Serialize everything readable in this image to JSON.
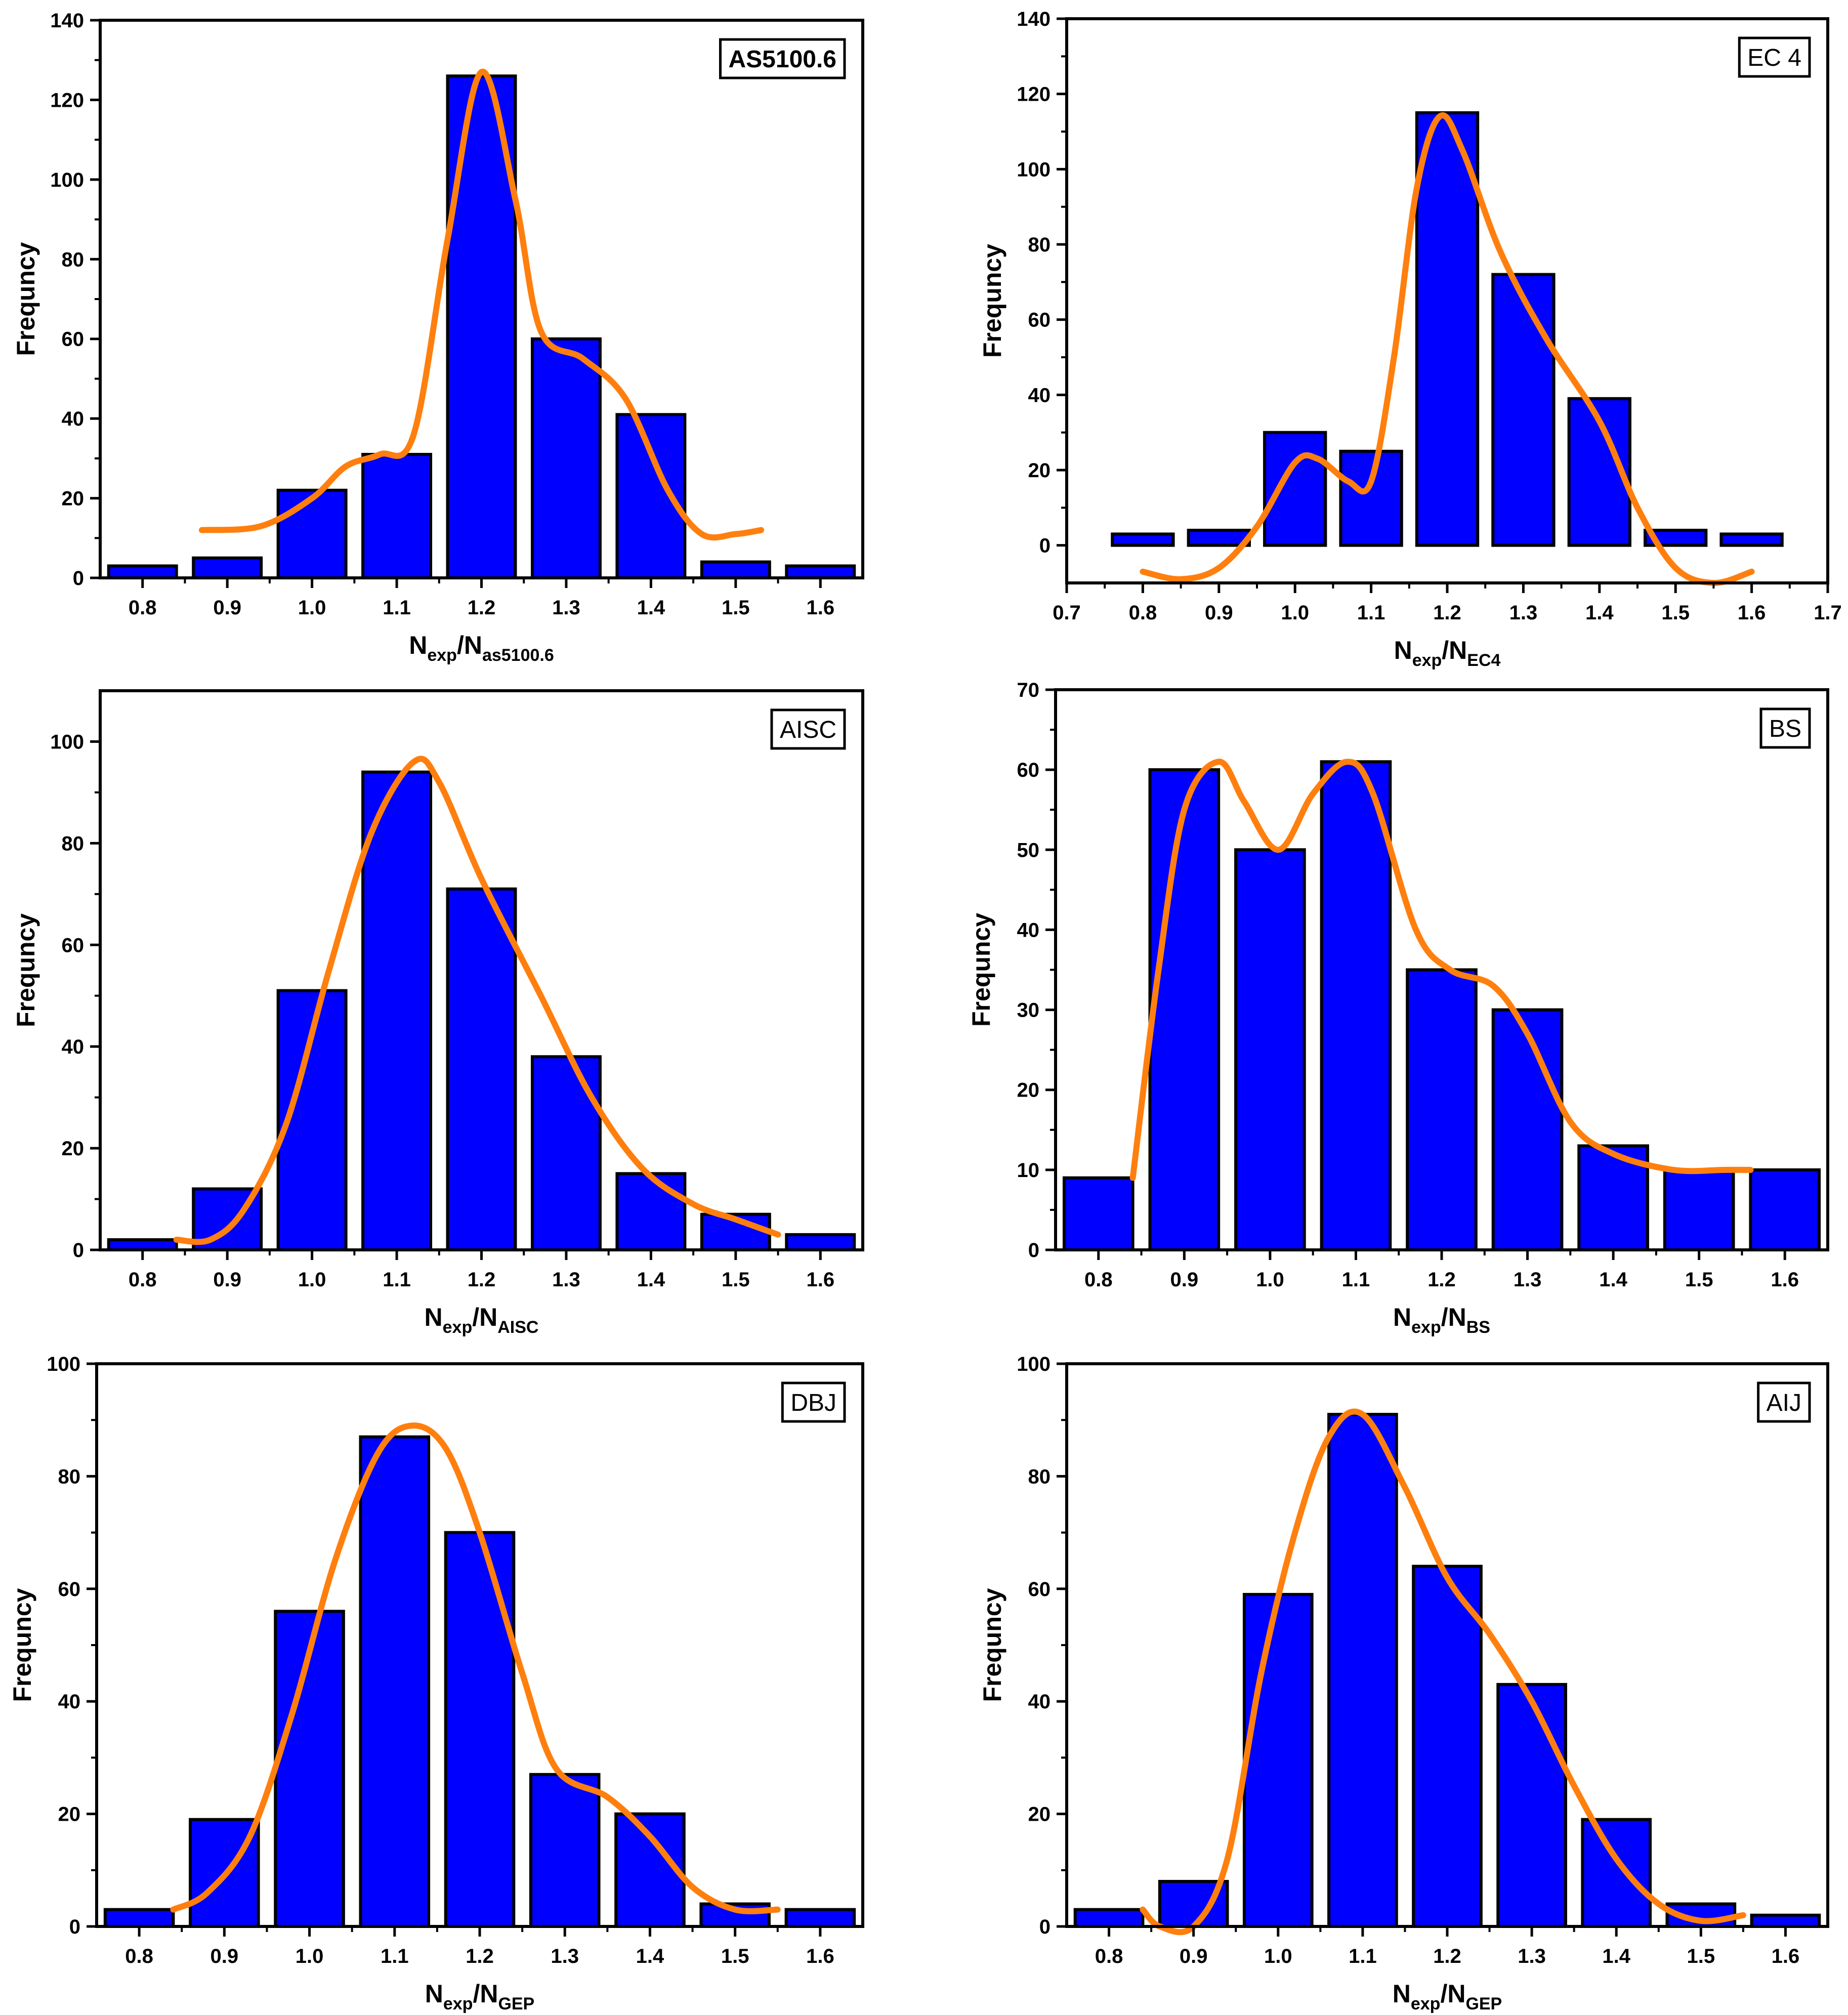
{
  "chart_data": [
    {
      "id": "as5100",
      "type": "bar",
      "label": "AS5100.6",
      "label_bold": true,
      "ylabel": "Frequncy",
      "xlabel_main": "N",
      "xlabel_sub1": "exp",
      "xlabel_mid": "/N",
      "xlabel_sub2": "as5100.6",
      "xlim": [
        0.75,
        1.65
      ],
      "ylim": [
        0,
        140
      ],
      "xticks": [
        0.8,
        0.9,
        1.0,
        1.1,
        1.2,
        1.3,
        1.4,
        1.5,
        1.6
      ],
      "yticks": [
        0,
        20,
        40,
        60,
        80,
        100,
        120,
        140
      ],
      "bar_width": 0.08,
      "x": [
        0.8,
        0.9,
        1.0,
        1.1,
        1.2,
        1.3,
        1.4,
        1.5,
        1.6
      ],
      "values": [
        3,
        5,
        22,
        31,
        126,
        60,
        41,
        4,
        3
      ],
      "curve": [
        [
          0.87,
          12
        ],
        [
          0.94,
          13
        ],
        [
          1.0,
          20
        ],
        [
          1.04,
          28
        ],
        [
          1.08,
          31
        ],
        [
          1.12,
          36
        ],
        [
          1.16,
          85
        ],
        [
          1.2,
          127
        ],
        [
          1.24,
          95
        ],
        [
          1.27,
          62
        ],
        [
          1.32,
          55
        ],
        [
          1.37,
          45
        ],
        [
          1.42,
          22
        ],
        [
          1.46,
          11
        ],
        [
          1.5,
          11
        ],
        [
          1.53,
          12
        ]
      ]
    },
    {
      "id": "ec4",
      "type": "bar",
      "label": "EC 4",
      "label_bold": false,
      "ylabel": "Frequncy",
      "xlabel_main": "N",
      "xlabel_sub1": "exp",
      "xlabel_mid": "/N",
      "xlabel_sub2": "EC4",
      "xlim": [
        0.7,
        1.7
      ],
      "ylim": [
        -10,
        140
      ],
      "xticks": [
        0.7,
        0.8,
        0.9,
        1.0,
        1.1,
        1.2,
        1.3,
        1.4,
        1.5,
        1.6,
        1.7
      ],
      "yticks": [
        0,
        20,
        40,
        60,
        80,
        100,
        120,
        140
      ],
      "bar_width": 0.08,
      "x": [
        0.8,
        0.9,
        1.0,
        1.1,
        1.2,
        1.3,
        1.4,
        1.5,
        1.6
      ],
      "values": [
        3,
        4,
        30,
        25,
        115,
        72,
        39,
        4,
        3
      ],
      "curve": [
        [
          0.8,
          -7
        ],
        [
          0.85,
          -9
        ],
        [
          0.9,
          -6
        ],
        [
          0.95,
          5
        ],
        [
          1.0,
          22
        ],
        [
          1.03,
          23
        ],
        [
          1.07,
          17
        ],
        [
          1.1,
          17
        ],
        [
          1.13,
          50
        ],
        [
          1.16,
          95
        ],
        [
          1.19,
          114
        ],
        [
          1.22,
          105
        ],
        [
          1.27,
          78
        ],
        [
          1.33,
          55
        ],
        [
          1.4,
          33
        ],
        [
          1.45,
          10
        ],
        [
          1.5,
          -6
        ],
        [
          1.55,
          -10
        ],
        [
          1.6,
          -7
        ]
      ]
    },
    {
      "id": "aisc",
      "type": "bar",
      "label": "AISC",
      "label_bold": false,
      "ylabel": "Frequncy",
      "xlabel_main": "N",
      "xlabel_sub1": "exp",
      "xlabel_mid": "/N",
      "xlabel_sub2": "AISC",
      "xlim": [
        0.75,
        1.65
      ],
      "ylim": [
        0,
        110
      ],
      "xticks": [
        0.8,
        0.9,
        1.0,
        1.1,
        1.2,
        1.3,
        1.4,
        1.5,
        1.6
      ],
      "yticks": [
        0,
        20,
        40,
        60,
        80,
        100
      ],
      "bar_width": 0.08,
      "x": [
        0.8,
        0.9,
        1.0,
        1.1,
        1.2,
        1.3,
        1.4,
        1.5,
        1.6
      ],
      "values": [
        2,
        12,
        51,
        94,
        71,
        38,
        15,
        7,
        3
      ],
      "curve": [
        [
          0.84,
          2
        ],
        [
          0.88,
          2
        ],
        [
          0.92,
          8
        ],
        [
          0.97,
          25
        ],
        [
          1.02,
          55
        ],
        [
          1.07,
          82
        ],
        [
          1.12,
          96
        ],
        [
          1.15,
          92
        ],
        [
          1.2,
          73
        ],
        [
          1.27,
          50
        ],
        [
          1.33,
          30
        ],
        [
          1.39,
          16
        ],
        [
          1.45,
          9
        ],
        [
          1.5,
          6
        ],
        [
          1.55,
          3
        ]
      ]
    },
    {
      "id": "bs",
      "type": "bar",
      "label": "BS",
      "label_bold": false,
      "ylabel": "Frequncy",
      "xlabel_main": "N",
      "xlabel_sub1": "exp",
      "xlabel_mid": "/N",
      "xlabel_sub2": "BS",
      "xlim": [
        0.75,
        1.65
      ],
      "ylim": [
        0,
        70
      ],
      "xticks": [
        0.8,
        0.9,
        1.0,
        1.1,
        1.2,
        1.3,
        1.4,
        1.5,
        1.6
      ],
      "yticks": [
        0,
        10,
        20,
        30,
        40,
        50,
        60,
        70
      ],
      "bar_width": 0.08,
      "x": [
        0.8,
        0.9,
        1.0,
        1.1,
        1.2,
        1.3,
        1.4,
        1.5,
        1.6
      ],
      "values": [
        9,
        60,
        50,
        61,
        35,
        30,
        13,
        10,
        10
      ],
      "curve": [
        [
          0.84,
          9
        ],
        [
          0.87,
          35
        ],
        [
          0.9,
          55
        ],
        [
          0.94,
          61
        ],
        [
          0.97,
          56
        ],
        [
          1.01,
          50
        ],
        [
          1.05,
          57
        ],
        [
          1.09,
          61
        ],
        [
          1.12,
          57
        ],
        [
          1.17,
          40
        ],
        [
          1.21,
          35
        ],
        [
          1.26,
          33
        ],
        [
          1.3,
          27
        ],
        [
          1.35,
          16
        ],
        [
          1.4,
          12
        ],
        [
          1.47,
          10
        ],
        [
          1.53,
          10
        ],
        [
          1.56,
          10
        ]
      ]
    },
    {
      "id": "dbj",
      "type": "bar",
      "label": "DBJ",
      "label_bold": false,
      "ylabel": "Frequncy",
      "xlabel_main": "N",
      "xlabel_sub1": "exp",
      "xlabel_mid": "/N",
      "xlabel_sub2": "GEP",
      "xlim": [
        0.75,
        1.65
      ],
      "ylim": [
        0,
        100
      ],
      "xticks": [
        0.8,
        0.9,
        1.0,
        1.1,
        1.2,
        1.3,
        1.4,
        1.5,
        1.6
      ],
      "yticks": [
        0,
        20,
        40,
        60,
        80,
        100
      ],
      "bar_width": 0.08,
      "x": [
        0.8,
        0.9,
        1.0,
        1.1,
        1.2,
        1.3,
        1.4,
        1.5,
        1.6
      ],
      "values": [
        3,
        19,
        56,
        87,
        70,
        27,
        20,
        4,
        3
      ],
      "curve": [
        [
          0.84,
          3
        ],
        [
          0.88,
          6
        ],
        [
          0.93,
          16
        ],
        [
          0.98,
          38
        ],
        [
          1.03,
          65
        ],
        [
          1.08,
          84
        ],
        [
          1.12,
          89
        ],
        [
          1.16,
          85
        ],
        [
          1.2,
          70
        ],
        [
          1.25,
          45
        ],
        [
          1.29,
          28
        ],
        [
          1.35,
          23
        ],
        [
          1.4,
          16
        ],
        [
          1.45,
          7
        ],
        [
          1.5,
          3
        ],
        [
          1.55,
          3
        ]
      ]
    },
    {
      "id": "aij",
      "type": "bar",
      "label": "AIJ",
      "label_bold": false,
      "ylabel": "Frequncy",
      "xlabel_main": "N",
      "xlabel_sub1": "exp",
      "xlabel_mid": "/N",
      "xlabel_sub2": "GEP",
      "xlim": [
        0.75,
        1.65
      ],
      "ylim": [
        0,
        100
      ],
      "xticks": [
        0.8,
        0.9,
        1.0,
        1.1,
        1.2,
        1.3,
        1.4,
        1.5,
        1.6
      ],
      "yticks": [
        0,
        20,
        40,
        60,
        80,
        100
      ],
      "bar_width": 0.08,
      "x": [
        0.8,
        0.9,
        1.0,
        1.1,
        1.2,
        1.3,
        1.4,
        1.5,
        1.6
      ],
      "values": [
        3,
        8,
        59,
        91,
        64,
        43,
        19,
        4,
        2
      ],
      "curve": [
        [
          0.84,
          3
        ],
        [
          0.86,
          0
        ],
        [
          0.9,
          0
        ],
        [
          0.94,
          12
        ],
        [
          0.98,
          45
        ],
        [
          1.02,
          70
        ],
        [
          1.06,
          87
        ],
        [
          1.1,
          91
        ],
        [
          1.15,
          78
        ],
        [
          1.2,
          62
        ],
        [
          1.25,
          52
        ],
        [
          1.3,
          40
        ],
        [
          1.35,
          25
        ],
        [
          1.4,
          12
        ],
        [
          1.45,
          4
        ],
        [
          1.5,
          1
        ],
        [
          1.55,
          2
        ]
      ]
    }
  ]
}
